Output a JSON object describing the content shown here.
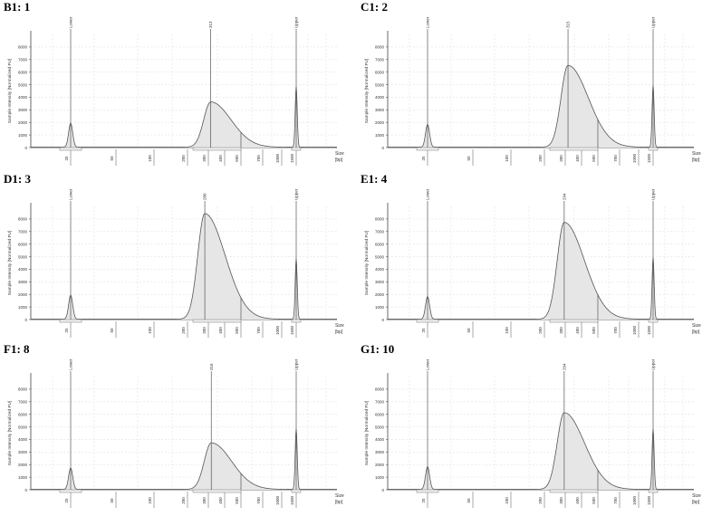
{
  "chart_data": [
    {
      "type": "area",
      "panel_id": "B1",
      "title": "B1: 1",
      "ylabel": "Sample Intensity [Normalized FU]",
      "xlabel": "Size [bp]",
      "xlabel_line1": "Size",
      "xlabel_line2": "[bp]",
      "y_ticks": [
        0,
        1000,
        2000,
        3000,
        4000,
        5000,
        6000,
        7000,
        8000
      ],
      "ylim": [
        0,
        9000
      ],
      "x_ticks": [
        "25",
        "50",
        "100",
        "200",
        "300",
        "400",
        "500",
        "700",
        "1000",
        "1500"
      ],
      "marker_labels": {
        "lower": "Lower",
        "upper": "Upper"
      },
      "peaks": [
        {
          "label": "Lower",
          "size_bp": 25,
          "height": 1900
        },
        {
          "label": "313",
          "size_bp": 313,
          "height": 3600
        },
        {
          "label": "Upper",
          "size_bp": 1500,
          "height": 4800
        }
      ],
      "region_bp": [
        200,
        500
      ]
    },
    {
      "type": "area",
      "panel_id": "C1",
      "title": "C1: 2",
      "ylabel": "Sample Intensity [Normalized FU]",
      "xlabel": "Size [bp]",
      "xlabel_line1": "Size",
      "xlabel_line2": "[bp]",
      "y_ticks": [
        0,
        1000,
        2000,
        3000,
        4000,
        5000,
        6000,
        7000,
        8000
      ],
      "ylim": [
        0,
        9000
      ],
      "x_ticks": [
        "25",
        "50",
        "100",
        "200",
        "300",
        "400",
        "500",
        "700",
        "1000",
        "1500"
      ],
      "marker_labels": {
        "lower": "Lower",
        "upper": "Upper"
      },
      "peaks": [
        {
          "label": "Lower",
          "size_bp": 25,
          "height": 1800
        },
        {
          "label": "315",
          "size_bp": 315,
          "height": 6500
        },
        {
          "label": "Upper",
          "size_bp": 1500,
          "height": 4900
        }
      ],
      "region_bp": [
        200,
        500
      ]
    },
    {
      "type": "area",
      "panel_id": "D1",
      "title": "D1: 3",
      "ylabel": "Sample Intensity [Normalized FU]",
      "xlabel": "Size [bp]",
      "xlabel_line1": "Size",
      "xlabel_line2": "[bp]",
      "y_ticks": [
        0,
        1000,
        2000,
        3000,
        4000,
        5000,
        6000,
        7000,
        8000
      ],
      "ylim": [
        0,
        9000
      ],
      "x_ticks": [
        "25",
        "50",
        "100",
        "200",
        "300",
        "400",
        "500",
        "700",
        "1000",
        "1500"
      ],
      "marker_labels": {
        "lower": "Lower",
        "upper": "Upper"
      },
      "peaks": [
        {
          "label": "Lower",
          "size_bp": 25,
          "height": 1900
        },
        {
          "label": "280",
          "size_bp": 280,
          "height": 8400
        },
        {
          "label": "Upper",
          "size_bp": 1500,
          "height": 4800
        }
      ],
      "region_bp": [
        200,
        500
      ]
    },
    {
      "type": "area",
      "panel_id": "E1",
      "title": "E1: 4",
      "ylabel": "Sample Intensity [Normalized FU]",
      "xlabel": "Size [bp]",
      "xlabel_line1": "Size",
      "xlabel_line2": "[bp]",
      "y_ticks": [
        0,
        1000,
        2000,
        3000,
        4000,
        5000,
        6000,
        7000,
        8000
      ],
      "ylim": [
        0,
        9000
      ],
      "x_ticks": [
        "25",
        "50",
        "100",
        "200",
        "300",
        "400",
        "500",
        "700",
        "1000",
        "1500"
      ],
      "marker_labels": {
        "lower": "Lower",
        "upper": "Upper"
      },
      "peaks": [
        {
          "label": "Lower",
          "size_bp": 25,
          "height": 1800
        },
        {
          "label": "294",
          "size_bp": 294,
          "height": 7700
        },
        {
          "label": "Upper",
          "size_bp": 1500,
          "height": 4900
        }
      ],
      "region_bp": [
        200,
        500
      ]
    },
    {
      "type": "area",
      "panel_id": "F1",
      "title": "F1: 8",
      "ylabel": "Sample Intensity [Normalized FU]",
      "xlabel": "Size [bp]",
      "xlabel_line1": "Size",
      "xlabel_line2": "[bp]",
      "y_ticks": [
        0,
        1000,
        2000,
        3000,
        4000,
        5000,
        6000,
        7000,
        8000
      ],
      "ylim": [
        0,
        9000
      ],
      "x_ticks": [
        "25",
        "50",
        "100",
        "200",
        "300",
        "400",
        "500",
        "700",
        "1000",
        "1500"
      ],
      "marker_labels": {
        "lower": "Lower",
        "upper": "Upper"
      },
      "peaks": [
        {
          "label": "Lower",
          "size_bp": 25,
          "height": 1700
        },
        {
          "label": "316",
          "size_bp": 316,
          "height": 3700
        },
        {
          "label": "Upper",
          "size_bp": 1500,
          "height": 4800
        }
      ],
      "region_bp": [
        200,
        500
      ]
    },
    {
      "type": "area",
      "panel_id": "G1",
      "title": "G1: 10",
      "ylabel": "Sample Intensity [Normalized FU]",
      "xlabel": "Size [bp]",
      "xlabel_line1": "Size",
      "xlabel_line2": "[bp]",
      "y_ticks": [
        0,
        1000,
        2000,
        3000,
        4000,
        5000,
        6000,
        7000,
        8000
      ],
      "ylim": [
        0,
        9000
      ],
      "x_ticks": [
        "25",
        "50",
        "100",
        "200",
        "300",
        "400",
        "500",
        "700",
        "1000",
        "1500"
      ],
      "marker_labels": {
        "lower": "Lower",
        "upper": "Upper"
      },
      "peaks": [
        {
          "label": "Lower",
          "size_bp": 25,
          "height": 1800
        },
        {
          "label": "294",
          "size_bp": 294,
          "height": 6100
        },
        {
          "label": "Upper",
          "size_bp": 1500,
          "height": 4800
        }
      ],
      "region_bp": [
        200,
        500
      ]
    }
  ]
}
